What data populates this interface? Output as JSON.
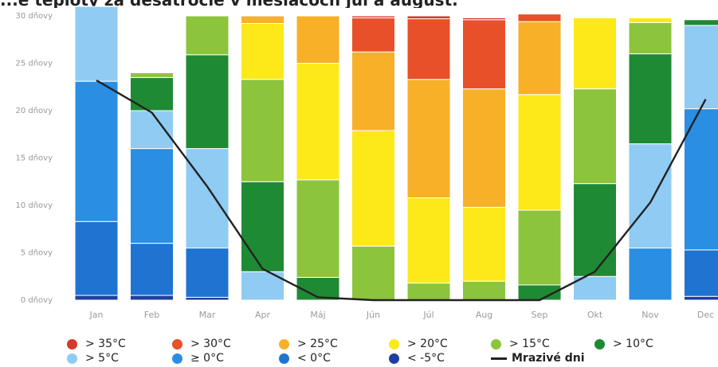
{
  "title": "...é teploty za desaťročie v mesiacoch júl a august.",
  "chart_data": {
    "type": "bar",
    "stacked": true,
    "categories": [
      "Jan",
      "Feb",
      "Mar",
      "Apr",
      "Máj",
      "Jún",
      "Júl",
      "Aug",
      "Sep",
      "Okt",
      "Nov",
      "Dec"
    ],
    "y_tick_labels": [
      "0 dňovy",
      "5 dňovy",
      "10 dňovy",
      "15 dňovy",
      "20 dňovy",
      "25 dňovy",
      "30 dňovy"
    ],
    "ylim": [
      0,
      30
    ],
    "series": [
      {
        "name": "< -5°C",
        "color": "#1f3fa0",
        "values": [
          0.5,
          0.5,
          0.3,
          0,
          0,
          0,
          0,
          0,
          0,
          0,
          0,
          0.4
        ]
      },
      {
        "name": "< 0°C",
        "color": "#1f73d1",
        "values": [
          7.8,
          5.5,
          5.2,
          0,
          0,
          0,
          0,
          0,
          0,
          0,
          0,
          4.9
        ]
      },
      {
        "name": "≥ 0°C",
        "color": "#2a8ee2",
        "values": [
          14.8,
          10.0,
          0,
          0,
          0,
          0,
          0,
          0,
          0,
          0,
          5.5,
          14.9
        ]
      },
      {
        "name": "> 5°C",
        "color": "#8fcbf2",
        "values": [
          7.9,
          4.0,
          10.5,
          3.0,
          0,
          0,
          0,
          0,
          0,
          2.5,
          11.0,
          8.8
        ]
      },
      {
        "name": "> 10°C",
        "color": "#1f8a34",
        "values": [
          0,
          3.5,
          9.9,
          9.5,
          2.4,
          0,
          0,
          0,
          1.6,
          9.8,
          9.5,
          0.6
        ]
      },
      {
        "name": "> 15°C",
        "color": "#8cc43c",
        "values": [
          0,
          0.5,
          4.1,
          10.8,
          10.3,
          5.7,
          1.8,
          2.0,
          7.9,
          10.0,
          3.3,
          0
        ]
      },
      {
        "name": "> 20°C",
        "color": "#fde81a",
        "values": [
          0,
          0,
          0,
          5.9,
          12.3,
          12.2,
          9.0,
          7.8,
          12.2,
          7.5,
          0.5,
          0
        ]
      },
      {
        "name": "> 25°C",
        "color": "#f7b028",
        "values": [
          0,
          0,
          0,
          0.8,
          5.0,
          8.3,
          12.5,
          12.5,
          7.7,
          0,
          0,
          0
        ]
      },
      {
        "name": "> 30°C",
        "color": "#e8502a",
        "values": [
          0,
          0,
          0,
          0,
          0,
          3.6,
          6.4,
          7.3,
          0.8,
          0,
          0,
          0
        ]
      },
      {
        "name": "> 35°C",
        "color": "#d63a2a",
        "values": [
          0,
          0,
          0,
          0,
          0,
          0.2,
          0.3,
          0.2,
          0,
          0,
          0,
          0
        ]
      }
    ],
    "line_series": {
      "name": "Mrazivé dni",
      "color": "#222222",
      "values": [
        23.2,
        19.8,
        12.0,
        3.3,
        0.3,
        0,
        0,
        0,
        0,
        3.0,
        10.3,
        21.2
      ]
    },
    "legend": [
      {
        "label": "> 35°C",
        "color": "#d63a2a",
        "kind": "dot"
      },
      {
        "label": "> 30°C",
        "color": "#e8502a",
        "kind": "dot"
      },
      {
        "label": "> 25°C",
        "color": "#f7b028",
        "kind": "dot"
      },
      {
        "label": "> 20°C",
        "color": "#fde81a",
        "kind": "dot"
      },
      {
        "label": "> 15°C",
        "color": "#8cc43c",
        "kind": "dot"
      },
      {
        "label": "> 10°C",
        "color": "#1f8a34",
        "kind": "dot"
      },
      {
        "label": "> 5°C",
        "color": "#8fcbf2",
        "kind": "dot"
      },
      {
        "label": "≥ 0°C",
        "color": "#2a8ee2",
        "kind": "dot"
      },
      {
        "label": "< 0°C",
        "color": "#1f73d1",
        "kind": "dot"
      },
      {
        "label": "< -5°C",
        "color": "#1f3fa0",
        "kind": "dot"
      },
      {
        "label": "Mrazivé dni",
        "color": "#222222",
        "kind": "line"
      }
    ],
    "legend_placement": "bottom",
    "grid": false
  }
}
